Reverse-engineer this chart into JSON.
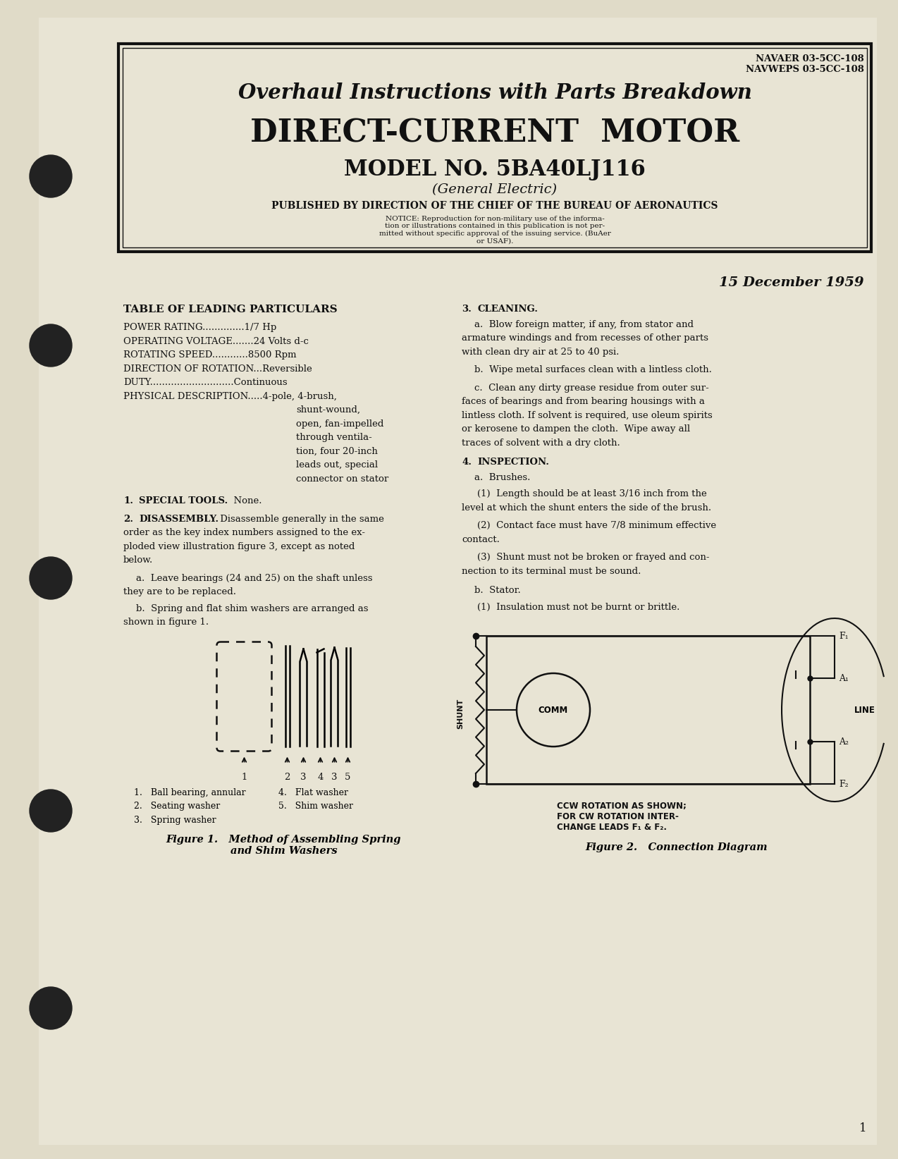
{
  "bg_color": "#e0dbc8",
  "page_color": "#e8e4d4",
  "text_color": "#111111",
  "doc_numbers": "NAVAER 03-5CC-108\nNAVWEPS 03-5CC-108",
  "title1": "Overhaul Instructions with Parts Breakdown",
  "title2": "DIRECT-CURRENT  MOTOR",
  "title3": "MODEL NO. 5BA40LJ116",
  "title4": "(General Electric)",
  "published": "PUBLISHED BY DIRECTION OF THE CHIEF OF THE BUREAU OF AERONAUTICS",
  "notice": "NOTICE: Reproduction for non-military use of the informa-\ntion or illustrations contained in this publication is not per-\nmitted without specific approval of the issuing service. (BuAer\nor USAF).",
  "date": "15 December 1959",
  "table_header": "TABLE OF LEADING PARTICULARS",
  "table_rows": [
    "POWER RATING..............1/7 Hp",
    "OPERATING VOLTAGE.......24 Volts d-c",
    "ROTATING SPEED............8500 Rpm",
    "DIRECTION OF ROTATION...Reversible",
    "DUTY............................Continuous",
    "PHYSICAL DESCRIPTION.....4-pole, 4-brush,"
  ],
  "physical_desc_cont": [
    "shunt-wound,",
    "open, fan-impelled",
    "through ventila-",
    "tion, four 20-inch",
    "leads out, special",
    "connector on stator"
  ],
  "fig1_legend_left": [
    "1.   Ball bearing, annular",
    "2.   Seating washer",
    "3.   Spring washer"
  ],
  "fig1_legend_right": [
    "4.   Flat washer",
    "5.   Shim washer"
  ],
  "fig1_caption": "Figure 1.   Method of Assembling Spring\nand Shim Washers",
  "fig2_caption": "Figure 2.   Connection Diagram",
  "fig2_note": "CCW ROTATION AS SHOWN;\nFOR CW ROTATION INTER-\nCHANGE LEADS F₁ & F₂.",
  "page_number": "1"
}
